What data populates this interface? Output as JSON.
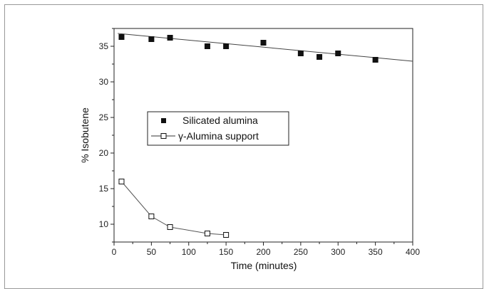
{
  "chart_data": {
    "type": "scatter",
    "title": "",
    "xlabel": "Time (minutes)",
    "ylabel": "% Isobutene",
    "xlim": [
      0,
      400
    ],
    "ylim": [
      7.5,
      37.5
    ],
    "xticks": [
      0,
      50,
      100,
      150,
      200,
      250,
      300,
      350,
      400
    ],
    "yticks": [
      10,
      15,
      20,
      25,
      30,
      35
    ],
    "grid": false,
    "legend_placement": "center-left",
    "series": [
      {
        "name": "Silicated alumina",
        "marker": "filled-square",
        "color": "#111111",
        "x": [
          10,
          50,
          75,
          125,
          150,
          200,
          250,
          275,
          300,
          350
        ],
        "y": [
          36.3,
          36.0,
          36.2,
          35.0,
          35.0,
          35.5,
          34.0,
          33.5,
          34.0,
          33.1
        ],
        "trendline": {
          "x": [
            5,
            400
          ],
          "y": [
            36.8,
            32.9
          ]
        }
      },
      {
        "name": "γ-Alumina support",
        "marker": "open-square",
        "color": "#111111",
        "x": [
          10,
          50,
          75,
          125,
          150
        ],
        "y": [
          16.0,
          11.1,
          9.6,
          8.7,
          8.5
        ],
        "connected": true
      }
    ]
  }
}
